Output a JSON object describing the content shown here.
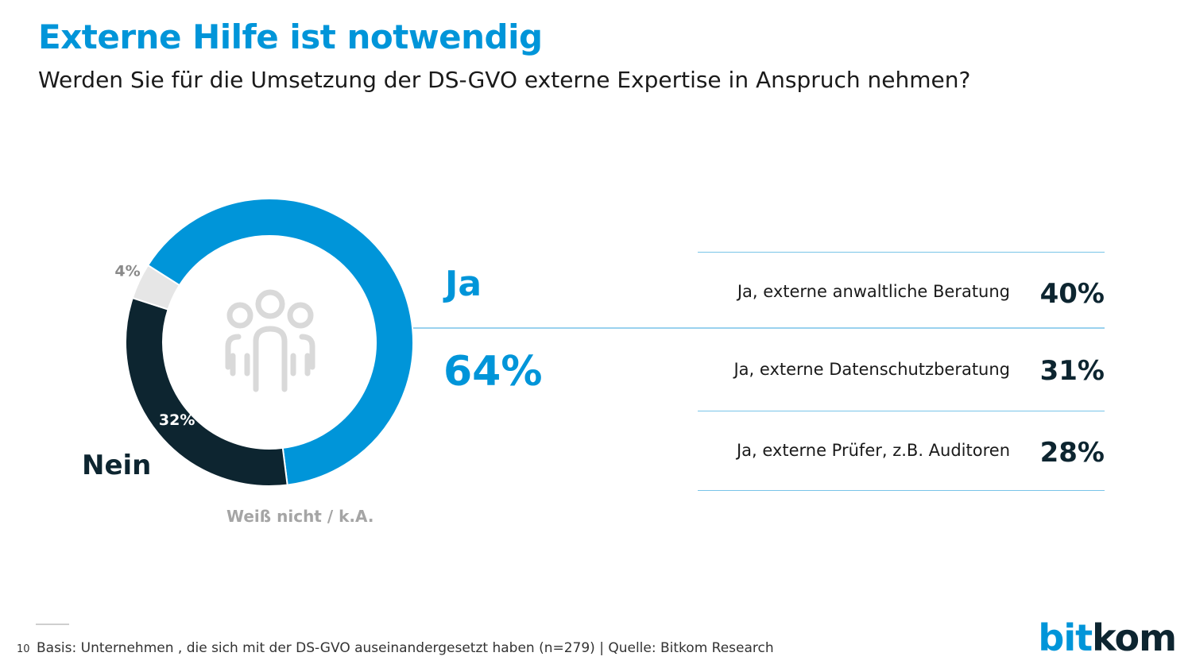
{
  "header": {
    "title": "Externe Hilfe ist notwendig",
    "subtitle": "Werden Sie für die Umsetzung der DS-GVO externe Expertise in Anspruch nehmen?"
  },
  "colors": {
    "ja": "#0095d9",
    "nein": "#0d2530",
    "weiss_nicht": "#e6e6e6",
    "icon": "#d9d9d9",
    "rule": "#79c4e8"
  },
  "chart_data": [
    {
      "type": "pie",
      "title": "",
      "categories": [
        "Ja",
        "Nein",
        "Weiß nicht / k.A."
      ],
      "values": [
        64,
        32,
        4
      ],
      "value_labels": [
        "64%",
        "32%",
        "4%"
      ],
      "labels": {
        "ja": "Ja",
        "nein": "Nein",
        "weiss_nicht": "Weiß nicht / k.A."
      },
      "center_icon": "people-group-icon"
    },
    {
      "type": "table",
      "title": "",
      "rows": [
        {
          "label": "Ja, externe anwaltliche Beratung",
          "value": 40,
          "display": "40%"
        },
        {
          "label": "Ja, externe Datenschutzberatung",
          "value": 31,
          "display": "31%"
        },
        {
          "label": "Ja, externe Prüfer, z.B. Auditoren",
          "value": 28,
          "display": "28%"
        }
      ]
    }
  ],
  "footer": {
    "page_number": "10",
    "source": "Basis: Unternehmen , die sich mit der DS-GVO auseinandergesetzt haben (n=279) | Quelle: Bitkom Research",
    "logo_text": "bitkom"
  }
}
